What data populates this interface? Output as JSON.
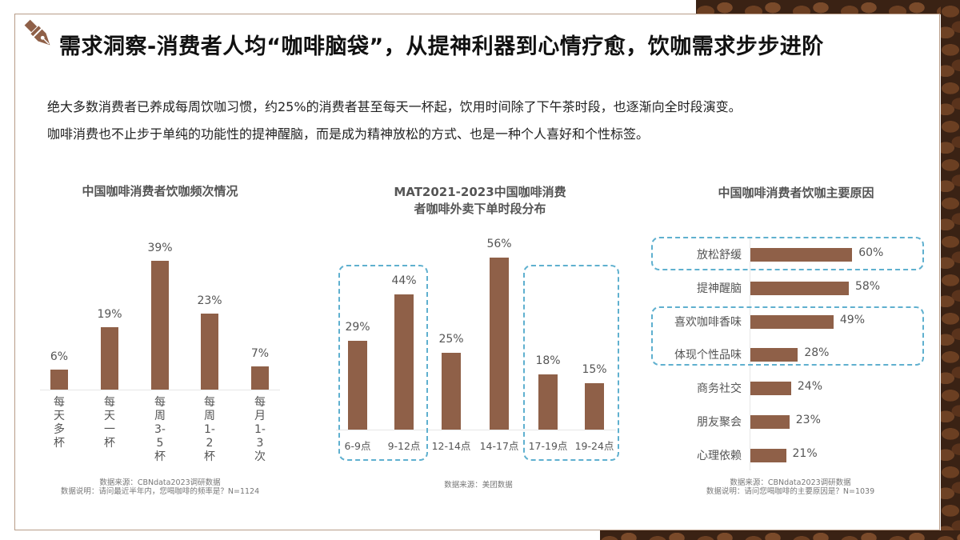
{
  "slide": {
    "title": "需求洞察-消费者人均“咖啡脑袋”，从提神利器到心情疗愈，饮咖需求步步进阶",
    "title_icon": "fountain-pen-icon",
    "intro": [
      "绝大多数消费者已养成每周饮咖习惯，约25%的消费者甚至每天一杯起，饮用时间除了下午茶时段，也逐渐向全时段演变。",
      "咖啡消费也不止步于单纯的功能性的提神醒脑，而是成为精神放松的方式、也是一种个人喜好和个性标签。"
    ],
    "colors": {
      "bar": "#8f6048",
      "highlight_dash": "#5fb0cf",
      "border": "#b89c88"
    }
  },
  "chart_data": [
    {
      "type": "bar",
      "title": "中国咖啡消费者饮咖频次情况",
      "categories": [
        "每天多杯",
        "每天一杯",
        "每周3-5杯",
        "每周1-2杯",
        "每月1-3次"
      ],
      "values": [
        6,
        19,
        39,
        23,
        7
      ],
      "value_labels": [
        "6%",
        "19%",
        "39%",
        "23%",
        "7%"
      ],
      "xlabel": "",
      "ylabel": "",
      "grid": false,
      "source": "数据来源：CBNdata2023调研数据",
      "note": "数据说明：请问最近半年内，您喝咖啡的频率是？N=1124"
    },
    {
      "type": "bar",
      "title": "MAT2021-2023中国咖啡消费者咖啡外卖下单时段分布",
      "title_lines": [
        "MAT2021-2023中国咖啡消费",
        "者咖啡外卖下单时段分布"
      ],
      "categories": [
        "6-9点",
        "9-12点",
        "12-14点",
        "14-17点",
        "17-19点",
        "19-24点"
      ],
      "values": [
        29,
        44,
        25,
        56,
        18,
        15
      ],
      "value_labels": [
        "29%",
        "44%",
        "25%",
        "56%",
        "18%",
        "15%"
      ],
      "highlight_groups": [
        [
          "6-9点",
          "9-12点"
        ],
        [
          "17-19点",
          "19-24点"
        ]
      ],
      "xlabel": "",
      "ylabel": "",
      "grid": false,
      "source": "数据来源：美团数据"
    },
    {
      "type": "bar",
      "orientation": "horizontal",
      "title": "中国咖啡消费者饮咖主要原因",
      "categories": [
        "放松舒缓",
        "提神醒脑",
        "喜欢咖啡香味",
        "体现个性品味",
        "商务社交",
        "朋友聚会",
        "心理依赖"
      ],
      "values": [
        60,
        58,
        49,
        28,
        24,
        23,
        21
      ],
      "value_labels": [
        "60%",
        "58%",
        "49%",
        "28%",
        "24%",
        "23%",
        "21%"
      ],
      "highlight_groups": [
        [
          "放松舒缓"
        ],
        [
          "喜欢咖啡香味",
          "体现个性品味"
        ]
      ],
      "xlabel": "",
      "ylabel": "",
      "grid": false,
      "source": "数据来源：CBNdata2023调研数据",
      "note": "数据说明：请问您喝咖啡的主要原因是？N=1039"
    }
  ]
}
